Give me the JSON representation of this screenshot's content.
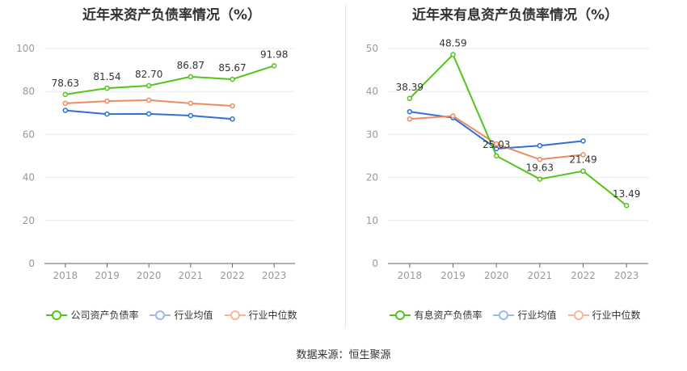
{
  "source": "数据来源：恒生聚源",
  "colors": {
    "primary": "#52c41a",
    "avg": "#2e6fd8",
    "median": "#f08a5d"
  },
  "chart_data": [
    {
      "type": "line",
      "title": "近年来资产负债率情况（%）",
      "categories": [
        "2018",
        "2019",
        "2020",
        "2021",
        "2022",
        "2023"
      ],
      "ylim": [
        0,
        100
      ],
      "yticks": [
        0,
        20,
        40,
        60,
        80,
        100
      ],
      "series": [
        {
          "name": "公司资产负债率",
          "values": [
            78.63,
            81.54,
            82.7,
            86.87,
            85.67,
            91.98
          ],
          "labels": true
        },
        {
          "name": "行业均值",
          "values": [
            71.2,
            69.5,
            69.6,
            68.8,
            67.2,
            null
          ]
        },
        {
          "name": "行业中位数",
          "values": [
            74.5,
            75.5,
            76.0,
            74.5,
            73.3,
            null
          ]
        }
      ]
    },
    {
      "type": "line",
      "title": "近年来有息资产负债率情况（%）",
      "categories": [
        "2018",
        "2019",
        "2020",
        "2021",
        "2022",
        "2023"
      ],
      "ylim": [
        0,
        50
      ],
      "yticks": [
        0,
        10,
        20,
        30,
        40,
        50
      ],
      "series": [
        {
          "name": "有息资产负债率",
          "values": [
            38.39,
            48.59,
            25.03,
            19.63,
            21.49,
            13.49
          ],
          "labels": true
        },
        {
          "name": "行业均值",
          "values": [
            35.3,
            33.9,
            26.7,
            27.4,
            28.5,
            null
          ]
        },
        {
          "name": "行业中位数",
          "values": [
            33.6,
            34.3,
            27.8,
            24.2,
            25.3,
            null
          ]
        }
      ]
    }
  ]
}
